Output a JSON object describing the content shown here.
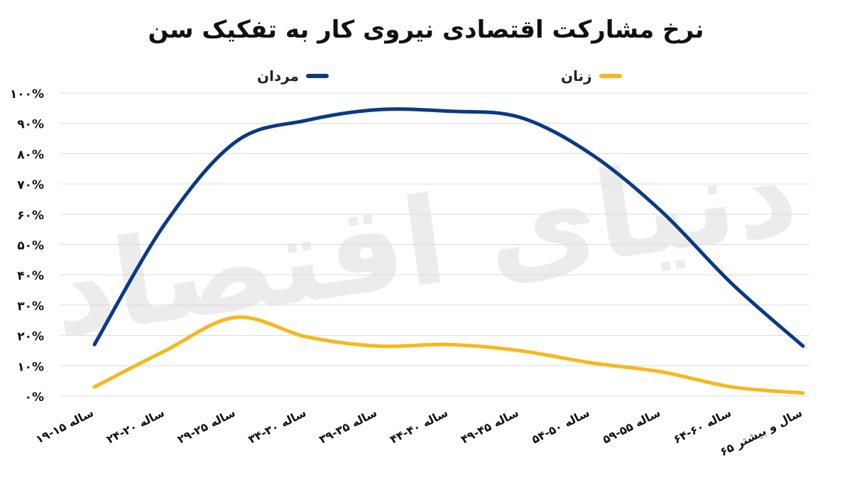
{
  "chart_data": {
    "type": "line",
    "title": "نرخ مشارکت اقتصادی نیروی کار به تفکیک سن",
    "categories": [
      "۱۹-۱۵ ساله",
      "۲۴-۲۰ ساله",
      "۲۹-۲۵ ساله",
      "۳۴-۳۰ ساله",
      "۳۹-۳۵ ساله",
      "۴۴-۴۰ ساله",
      "۴۹-۴۵ ساله",
      "۵۴-۵۰ ساله",
      "۵۹-۵۵ ساله",
      "۶۴-۶۰ ساله",
      "۶۵ سال و بیشتر"
    ],
    "series": [
      {
        "name": "مردان",
        "color": "#0b3a84",
        "values": [
          17,
          57,
          84,
          91,
          94.5,
          94,
          92,
          80,
          61,
          37,
          16.5
        ]
      },
      {
        "name": "زنان",
        "color": "#f6b81c",
        "values": [
          3,
          15,
          26,
          19.5,
          16.5,
          17,
          15,
          11,
          8,
          3,
          1
        ]
      }
    ],
    "ylim": [
      0,
      100
    ],
    "yticks": [
      "۰%",
      "۱۰%",
      "۲۰%",
      "۳۰%",
      "۴۰%",
      "۵۰%",
      "۶۰%",
      "۷۰%",
      "۸۰%",
      "۹۰%",
      "۱۰۰%"
    ],
    "grid": true,
    "legend_position": "top",
    "watermark": "دنیای اقتصاد"
  }
}
